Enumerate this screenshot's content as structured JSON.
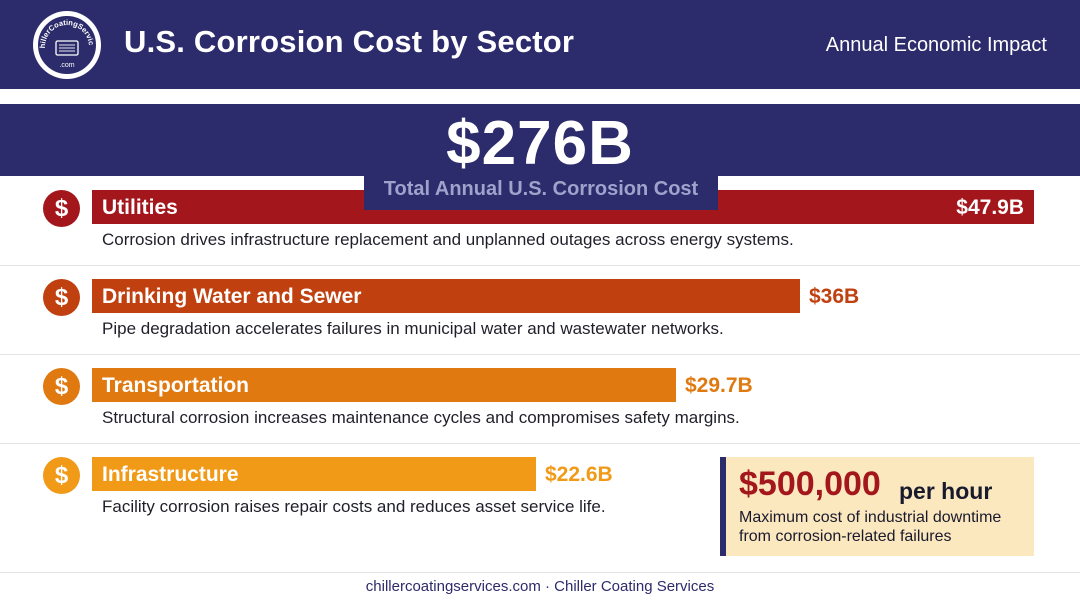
{
  "header": {
    "logo_text": "ChillerCoatingServices.com",
    "title": "U.S. Corrosion Cost by Sector",
    "subtitle": "Annual Economic Impact"
  },
  "total": {
    "value": "$276B",
    "label": "Total Annual U.S. Corrosion Cost"
  },
  "colors": {
    "navy": "#2c2b6b",
    "utilities": "#a3161c",
    "drinking_water": "#c0400f",
    "transportation": "#e07a10",
    "infrastructure": "#f09a18",
    "callout_bg": "#fbe8bf"
  },
  "icons": {
    "sector_icon": "dollar-icon"
  },
  "chart_data": {
    "type": "bar",
    "orientation": "horizontal",
    "title": "U.S. Corrosion Cost by Sector",
    "subtitle": "Annual Economic Impact",
    "unit": "billion USD",
    "categories": [
      "Utilities",
      "Drinking Water and Sewer",
      "Transportation",
      "Infrastructure"
    ],
    "values": [
      47.9,
      36,
      29.7,
      22.6
    ],
    "value_labels": [
      "$47.9B",
      "$36B",
      "$29.7B",
      "$22.6B"
    ],
    "descriptions": [
      "Corrosion drives infrastructure replacement and unplanned outages across energy systems.",
      "Pipe degradation accelerates failures in municipal water and wastewater networks.",
      "Structural corrosion increases maintenance cycles and compromises safety margins.",
      "Facility corrosion raises repair costs and reduces asset service life."
    ],
    "colors": [
      "#a3161c",
      "#c0400f",
      "#e07a10",
      "#f09a18"
    ],
    "grid": false,
    "legend": "none"
  },
  "callout": {
    "value": "$500,000",
    "unit": "per hour",
    "text": "Maximum cost of industrial downtime from corrosion-related failures"
  },
  "footer": {
    "text": "chillercoatingservices.com · Chiller Coating Services"
  }
}
